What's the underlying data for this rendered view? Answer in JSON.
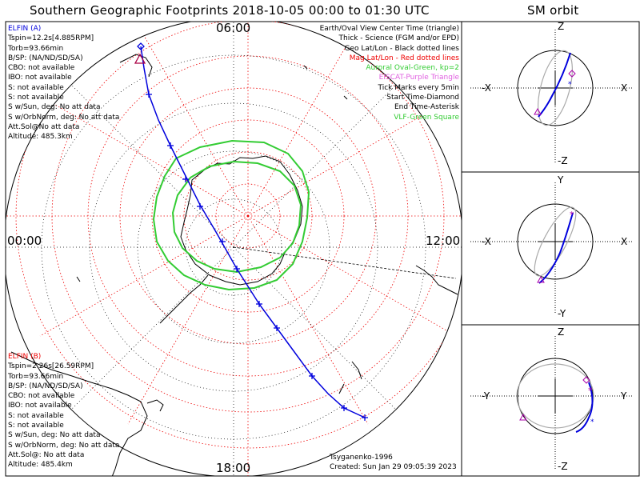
{
  "title": "Southern Geographic Footprints 2018-10-05 00:00 to 01:30 UTC",
  "sm_title": "SM orbit",
  "local_time_labels": {
    "top": "06:00",
    "left": "00:00",
    "right": "12:00",
    "bottom": "18:00"
  },
  "elfin_a": {
    "name": "ELFIN (A)",
    "lines": [
      "Tspin=12.2s[4.885RPM]",
      "Torb=93.66min",
      "B/SP: (NA/ND/SD/SA)",
      "CBO: not available",
      "IBO: not available",
      "S: not available",
      "S: not available",
      "S w/Sun, deg: No att data",
      "S w/OrbNorm, deg: No att data",
      "Att.Sol@No att data",
      "Altitude: 485.3km"
    ]
  },
  "elfin_b": {
    "name": "ELFIN (B)",
    "lines": [
      "Tspin=2.26s[26.59RPM]",
      "Torb=93.66min",
      "B/SP: (NA/ND/SD/SA)",
      "CBO: not available",
      "IBO: not available",
      "S: not available",
      "S: not available",
      "S w/Sun, deg: No att data",
      "S w/OrbNorm, deg: No att data",
      "Att.Sol@: No att data",
      "Altitude: 485.4km"
    ]
  },
  "legend": {
    "view_center": "Earth/Oval View Center Time (triangle)",
    "science": "Thick - Science (FGM and/or EPD)",
    "geo": "Geo Lat/Lon - Black dotted lines",
    "mag": "Mag Lat/Lon - Red dotted lines",
    "auroral": "Auroral Oval-Green, kp=2",
    "eiscat": "EISCAT-Purple Triangle",
    "tick": "Tick Marks every 5min",
    "start": "Start Time-Diamond",
    "end": "End Time-Asterisk",
    "vlf": "VLF-Green Square"
  },
  "footer": {
    "author": "Tsyganenko-1996",
    "created": "Created: Sun Jan 29 09:05:39 2023"
  },
  "sm_panels": [
    {
      "top": "Z",
      "bottom": "-Z",
      "left": "-X",
      "right": "X"
    },
    {
      "top": "Y",
      "bottom": "-Y",
      "left": "-X",
      "right": "X"
    },
    {
      "top": "Z",
      "bottom": "-Z",
      "left": "-Y",
      "right": "Y"
    }
  ],
  "colors": {
    "elfin_a": "#0000dd",
    "elfin_b": "#ee0000",
    "geo_grid": "#000000",
    "mag_grid": "#ee0000",
    "auroral_oval": "#33cc33",
    "eiscat": "#e060e0",
    "orbit_back": "#aaaaaa"
  },
  "chart_data": {
    "type": "line",
    "title": "Southern Geographic Footprints 2018-10-05 00:00 to 01:30 UTC",
    "projection": "south polar",
    "series": [
      {
        "name": "ELFIN (A)",
        "color": "#0000dd",
        "tick_marks": 11
      }
    ],
    "auroral_oval_kp": 2,
    "tick_interval": "5min"
  }
}
